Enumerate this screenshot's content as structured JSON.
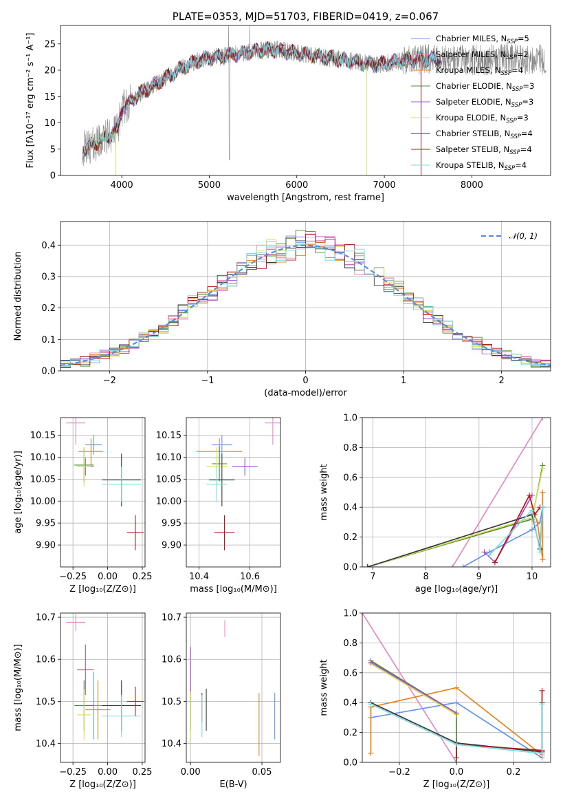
{
  "colors": {
    "chabrier_miles": "#6495ed",
    "salpeter_miles": "#e78ac3",
    "kroupa_miles": "#e8821e",
    "chabrier_elodie": "#4b8b3b",
    "salpeter_elodie": "#a64fc9",
    "kroupa_elodie": "#d4e157",
    "chabrier_stelib": "#3a3a3a",
    "salpeter_stelib": "#b0161a",
    "kroupa_stelib": "#7fd9e0",
    "spectrum": "#888888",
    "normal": "#5b8bd8",
    "grid": "#b0b0b0"
  },
  "chart_data": [
    {
      "id": "spectrum",
      "type": "line",
      "title": "PLATE=0353, MJD=51703, FIBERID=0419, z=0.067",
      "xlabel": "wavelength [Angstrom, rest frame]",
      "ylabel": "Flux [fλ10⁻¹⁷ erg cm⁻² s⁻¹ A⁻¹]",
      "xlim": [
        3300,
        8900
      ],
      "ylim": [
        0,
        28.5
      ],
      "xticks": [
        4000,
        5000,
        6000,
        7000,
        8000
      ],
      "yticks": [
        0,
        5,
        10,
        15,
        20,
        25
      ],
      "grid": false,
      "legend_position": "right",
      "series": [
        {
          "name": "Chabrier MILES, N",
          "sub": "SSP",
          "suffix": "=5",
          "color": "chabrier_miles"
        },
        {
          "name": "Salpeter MILES, N",
          "sub": "SSP",
          "suffix": "=2",
          "color": "salpeter_miles"
        },
        {
          "name": "Kroupa MILES, N",
          "sub": "SSP",
          "suffix": "=4",
          "color": "kroupa_miles"
        },
        {
          "name": "Chabrier ELODIE, N",
          "sub": "SSP",
          "suffix": "=3",
          "color": "chabrier_elodie"
        },
        {
          "name": "Salpeter ELODIE, N",
          "sub": "SSP",
          "suffix": "=3",
          "color": "salpeter_elodie"
        },
        {
          "name": "Kroupa ELODIE, N",
          "sub": "SSP",
          "suffix": "=3",
          "color": "kroupa_elodie"
        },
        {
          "name": "Chabrier STELIB, N",
          "sub": "SSP",
          "suffix": "=4",
          "color": "chabrier_stelib"
        },
        {
          "name": "Salpeter STELIB, N",
          "sub": "SSP",
          "suffix": "=4",
          "color": "salpeter_stelib"
        },
        {
          "name": "Kroupa STELIB, N",
          "sub": "SSP",
          "suffix": "=4",
          "color": "kroupa_stelib"
        }
      ],
      "continuum": {
        "x": [
          3550,
          3700,
          3850,
          3950,
          4000,
          4100,
          4200,
          4300,
          4500,
          4700,
          4900,
          5100,
          5300,
          5500,
          5700,
          5900,
          6100,
          6300,
          6500,
          6700,
          6900,
          7100,
          7300,
          7400
        ],
        "y": [
          5,
          6,
          7.5,
          8.5,
          12.5,
          14,
          15.5,
          16.5,
          18.5,
          20.5,
          22,
          22.5,
          23,
          23.5,
          24,
          23.5,
          23,
          22.5,
          22,
          21.5,
          21,
          21.5,
          22,
          22
        ]
      },
      "observed_extent": [
        3550,
        8850
      ]
    },
    {
      "id": "residuals",
      "type": "line",
      "title": "",
      "xlabel": "(data-model)/error",
      "ylabel": "Normed distribution",
      "xlim": [
        -2.5,
        2.5
      ],
      "ylim": [
        0,
        0.475
      ],
      "xticks": [
        -2,
        -1,
        0,
        1,
        2
      ],
      "yticks": [
        0.0,
        0.1,
        0.2,
        0.3,
        0.4
      ],
      "grid": true,
      "legend": [
        {
          "label": "𝒩(0, 1)",
          "style": "dashed",
          "color": "normal"
        }
      ],
      "legend_position": "upper right",
      "bin_width": 0.1
    },
    {
      "id": "age_vs_Z",
      "type": "scatter",
      "xlabel": "Z [log₁₀(Z/Z⊙)]",
      "ylabel": "age  [log₁₀(age/yr)]",
      "xlim": [
        -0.34,
        0.27
      ],
      "ylim": [
        9.85,
        10.19
      ],
      "xticks": [
        -0.25,
        0.0,
        0.25
      ],
      "yticks": [
        9.9,
        9.95,
        10.0,
        10.05,
        10.1,
        10.15
      ],
      "grid": true,
      "points": [
        {
          "x": -0.1,
          "y": 10.128,
          "xerr": 0.06,
          "yerr": 0.022,
          "color": "chabrier_miles"
        },
        {
          "x": -0.23,
          "y": 10.178,
          "xerr": 0.07,
          "yerr": 0.05,
          "color": "salpeter_miles"
        },
        {
          "x": -0.12,
          "y": 10.113,
          "xerr": 0.09,
          "yerr": 0.03,
          "color": "kroupa_miles"
        },
        {
          "x": -0.17,
          "y": 10.082,
          "xerr": 0.07,
          "yerr": 0.04,
          "color": "chabrier_elodie"
        },
        {
          "x": -0.16,
          "y": 10.078,
          "xerr": 0.06,
          "yerr": 0.02,
          "color": "salpeter_elodie"
        },
        {
          "x": -0.17,
          "y": 10.078,
          "xerr": 0.05,
          "yerr": 0.045,
          "color": "kroupa_elodie"
        },
        {
          "x": 0.1,
          "y": 10.048,
          "xerr": 0.14,
          "yerr": 0.06,
          "color": "chabrier_stelib"
        },
        {
          "x": 0.2,
          "y": 9.928,
          "xerr": 0.06,
          "yerr": 0.04,
          "color": "salpeter_stelib"
        },
        {
          "x": 0.1,
          "y": 10.038,
          "xerr": 0.14,
          "yerr": 0.04,
          "color": "kroupa_stelib"
        }
      ]
    },
    {
      "id": "age_vs_mass",
      "type": "scatter",
      "xlabel": "mass [log₁₀(M/M⊙)]",
      "ylabel": "",
      "xlim": [
        10.35,
        10.72
      ],
      "ylim": [
        9.85,
        10.19
      ],
      "xticks": [
        10.4,
        10.6
      ],
      "yticks": [
        9.9,
        9.95,
        10.0,
        10.05,
        10.1,
        10.15
      ],
      "grid": true,
      "points": [
        {
          "x": 10.49,
          "y": 10.128,
          "xerr": 0.04,
          "yerr": 0.022,
          "color": "chabrier_miles"
        },
        {
          "x": 10.69,
          "y": 10.178,
          "xerr": 0.03,
          "yerr": 0.05,
          "color": "salpeter_miles"
        },
        {
          "x": 10.48,
          "y": 10.113,
          "xerr": 0.09,
          "yerr": 0.03,
          "color": "kroupa_miles"
        },
        {
          "x": 10.48,
          "y": 10.085,
          "xerr": 0.03,
          "yerr": 0.04,
          "color": "chabrier_elodie"
        },
        {
          "x": 10.58,
          "y": 10.078,
          "xerr": 0.05,
          "yerr": 0.02,
          "color": "salpeter_elodie"
        },
        {
          "x": 10.47,
          "y": 10.078,
          "xerr": 0.04,
          "yerr": 0.045,
          "color": "kroupa_elodie"
        },
        {
          "x": 10.49,
          "y": 10.048,
          "xerr": 0.05,
          "yerr": 0.06,
          "color": "chabrier_stelib"
        },
        {
          "x": 10.5,
          "y": 9.928,
          "xerr": 0.04,
          "yerr": 0.04,
          "color": "salpeter_stelib"
        },
        {
          "x": 10.47,
          "y": 10.038,
          "xerr": 0.04,
          "yerr": 0.04,
          "color": "kroupa_stelib"
        }
      ]
    },
    {
      "id": "weight_vs_age",
      "type": "line",
      "xlabel": "age  [log₁₀(age/yr)]",
      "ylabel": "mass weight",
      "xlim": [
        6.8,
        10.35
      ],
      "ylim": [
        0,
        1.0
      ],
      "xticks": [
        7,
        8,
        9,
        10
      ],
      "yticks": [
        0.0,
        0.2,
        0.4,
        0.6,
        0.8,
        1.0
      ],
      "grid": true,
      "series": [
        {
          "color": "salpeter_miles",
          "x": [
            8.5,
            10.2
          ],
          "y": [
            0.0,
            1.0
          ]
        },
        {
          "color": "chabrier_miles",
          "x": [
            8.7,
            9.2,
            10.0,
            10.15,
            10.2
          ],
          "y": [
            0.0,
            0.1,
            0.25,
            0.3,
            0.4
          ]
        },
        {
          "color": "kroupa_miles",
          "x": [
            10.0,
            10.1,
            10.2,
            10.2
          ],
          "y": [
            0.4,
            0.3,
            0.05,
            0.5
          ]
        },
        {
          "color": "chabrier_elodie",
          "x": [
            6.9,
            10.0,
            10.2
          ],
          "y": [
            0.0,
            0.32,
            0.68
          ]
        },
        {
          "color": "kroupa_elodie",
          "x": [
            6.9,
            10.0,
            10.2
          ],
          "y": [
            0.0,
            0.33,
            0.66
          ]
        },
        {
          "color": "salpeter_elodie",
          "x": [
            9.1,
            9.3,
            10.0
          ],
          "y": [
            0.1,
            0.03,
            0.48
          ]
        },
        {
          "color": "chabrier_stelib",
          "x": [
            6.9,
            10.0,
            10.15,
            10.2
          ],
          "y": [
            0.0,
            0.35,
            0.12,
            0.4
          ]
        },
        {
          "color": "salpeter_stelib",
          "x": [
            9.3,
            9.95,
            10.05,
            10.15
          ],
          "y": [
            0.03,
            0.48,
            0.35,
            0.4
          ]
        },
        {
          "color": "kroupa_stelib",
          "x": [
            9.2,
            10.0,
            10.15,
            10.2
          ],
          "y": [
            0.08,
            0.38,
            0.1,
            0.4
          ]
        }
      ]
    },
    {
      "id": "mass_vs_Z",
      "type": "scatter",
      "xlabel": "Z [log₁₀(Z/Z⊙)]",
      "ylabel": "mass [log₁₀(M/M⊙)]",
      "xlim": [
        -0.34,
        0.27
      ],
      "ylim": [
        10.355,
        10.71
      ],
      "xticks": [
        -0.25,
        0.0,
        0.25
      ],
      "yticks": [
        10.4,
        10.5,
        10.6,
        10.7
      ],
      "grid": true,
      "points": [
        {
          "x": -0.1,
          "y": 10.49,
          "xerr": 0.06,
          "yerr": 0.08,
          "color": "chabrier_miles"
        },
        {
          "x": -0.23,
          "y": 10.688,
          "xerr": 0.07,
          "yerr": 0.02,
          "color": "salpeter_miles"
        },
        {
          "x": -0.07,
          "y": 10.48,
          "xerr": 0.09,
          "yerr": 0.07,
          "color": "kroupa_miles"
        },
        {
          "x": -0.17,
          "y": 10.49,
          "xerr": 0.07,
          "yerr": 0.06,
          "color": "chabrier_elodie"
        },
        {
          "x": -0.16,
          "y": 10.575,
          "xerr": 0.06,
          "yerr": 0.06,
          "color": "salpeter_elodie"
        },
        {
          "x": -0.17,
          "y": 10.468,
          "xerr": 0.05,
          "yerr": 0.06,
          "color": "kroupa_elodie"
        },
        {
          "x": 0.1,
          "y": 10.49,
          "xerr": 0.14,
          "yerr": 0.06,
          "color": "chabrier_stelib"
        },
        {
          "x": 0.2,
          "y": 10.5,
          "xerr": 0.06,
          "yerr": 0.035,
          "color": "salpeter_stelib"
        },
        {
          "x": 0.1,
          "y": 10.465,
          "xerr": 0.14,
          "yerr": 0.05,
          "color": "kroupa_stelib"
        }
      ]
    },
    {
      "id": "mass_vs_ebv",
      "type": "scatter",
      "xlabel": "E(B-V)",
      "ylabel": "",
      "xlim": [
        -0.003,
        0.063
      ],
      "ylim": [
        10.355,
        10.71
      ],
      "xticks": [
        0.0,
        0.05
      ],
      "yticks": [
        10.4,
        10.5,
        10.6,
        10.7
      ],
      "grid": true,
      "points": [
        {
          "x": 0.059,
          "y": 10.465,
          "xerr": 0.0,
          "yerr": 0.055,
          "color": "chabrier_miles"
        },
        {
          "x": 0.024,
          "y": 10.673,
          "xerr": 0.0,
          "yerr": 0.02,
          "color": "salpeter_miles"
        },
        {
          "x": 0.048,
          "y": 10.445,
          "xerr": 0.0,
          "yerr": 0.075,
          "color": "kroupa_miles"
        },
        {
          "x": 0.0,
          "y": 10.48,
          "xerr": 0.0,
          "yerr": 0.05,
          "color": "chabrier_elodie"
        },
        {
          "x": 0.0,
          "y": 10.575,
          "xerr": 0.0,
          "yerr": 0.055,
          "color": "salpeter_elodie"
        },
        {
          "x": 0.0,
          "y": 10.465,
          "xerr": 0.0,
          "yerr": 0.06,
          "color": "kroupa_elodie"
        },
        {
          "x": 0.011,
          "y": 10.48,
          "xerr": 0.0,
          "yerr": 0.05,
          "color": "chabrier_stelib"
        },
        {
          "x": 0.008,
          "y": 10.485,
          "xerr": 0.0,
          "yerr": 0.035,
          "color": "salpeter_stelib"
        },
        {
          "x": 0.008,
          "y": 10.465,
          "xerr": 0.0,
          "yerr": 0.05,
          "color": "kroupa_stelib"
        }
      ]
    },
    {
      "id": "weight_vs_Z",
      "type": "line",
      "xlabel": "Z [log₁₀(Z/Z⊙)]",
      "ylabel": "mass weight",
      "xlim": [
        -0.33,
        0.33
      ],
      "ylim": [
        0,
        1.0
      ],
      "xticks": [
        -0.2,
        0.0,
        0.2
      ],
      "yticks": [
        0.0,
        0.2,
        0.4,
        0.6,
        0.8,
        1.0
      ],
      "grid": true,
      "series": [
        {
          "color": "salpeter_miles",
          "x": [
            -0.33,
            0.0
          ],
          "y": [
            1.0,
            0.0
          ]
        },
        {
          "color": "chabrier_miles",
          "x": [
            -0.3,
            0.0,
            0.3
          ],
          "y": [
            0.3,
            0.4,
            0.03
          ]
        },
        {
          "color": "kroupa_miles",
          "x": [
            -0.3,
            -0.3,
            0.0,
            0.3
          ],
          "y": [
            0.06,
            0.37,
            0.5,
            0.05
          ]
        },
        {
          "color": "chabrier_elodie",
          "x": [
            -0.3,
            0.0,
            0.0
          ],
          "y": [
            0.68,
            0.33,
            0.0
          ]
        },
        {
          "color": "kroupa_elodie",
          "x": [
            -0.3,
            0.0
          ],
          "y": [
            0.66,
            0.32
          ]
        },
        {
          "color": "salpeter_elodie",
          "x": [
            -0.3,
            0.0
          ],
          "y": [
            0.67,
            0.33
          ]
        },
        {
          "color": "chabrier_stelib",
          "x": [
            -0.3,
            0.0,
            0.3,
            0.3
          ],
          "y": [
            0.4,
            0.13,
            0.07,
            0.4
          ]
        },
        {
          "color": "salpeter_stelib",
          "x": [
            0.0,
            0.0,
            0.3,
            0.3
          ],
          "y": [
            0.03,
            0.12,
            0.08,
            0.48
          ]
        },
        {
          "color": "kroupa_stelib",
          "x": [
            -0.3,
            0.0,
            0.3,
            0.3
          ],
          "y": [
            0.39,
            0.12,
            0.06,
            0.39
          ]
        }
      ]
    }
  ]
}
